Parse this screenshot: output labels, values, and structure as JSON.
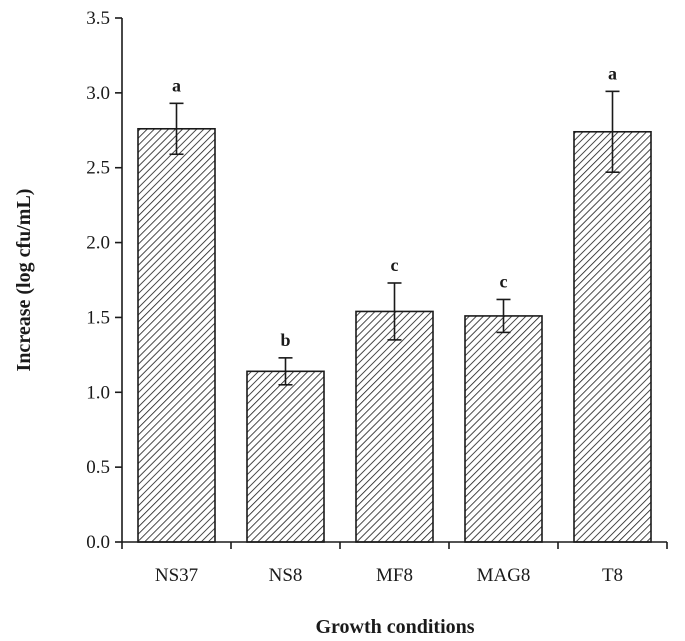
{
  "chart_data": {
    "type": "bar",
    "title": "",
    "xlabel": "Growth conditions",
    "ylabel": "Increase (log cfu/mL)",
    "ylim": [
      0,
      3.5
    ],
    "yticks": [
      "0.0",
      "0.5",
      "1.0",
      "1.5",
      "2.0",
      "2.5",
      "3.0",
      "3.5"
    ],
    "categories": [
      "NS37",
      "NS8",
      "MF8",
      "MAG8",
      "T8"
    ],
    "values": [
      2.76,
      1.14,
      1.54,
      1.51,
      2.74
    ],
    "errors": [
      0.17,
      0.09,
      0.19,
      0.11,
      0.27
    ],
    "significance": [
      "a",
      "b",
      "c",
      "c",
      "a"
    ],
    "grid": false,
    "bar_fill": "diagonal-hatch",
    "colors": {
      "bar_stroke": "#1a1a1a",
      "hatch": "#1a1a1a",
      "axis": "#1a1a1a",
      "background": "#ffffff"
    }
  }
}
